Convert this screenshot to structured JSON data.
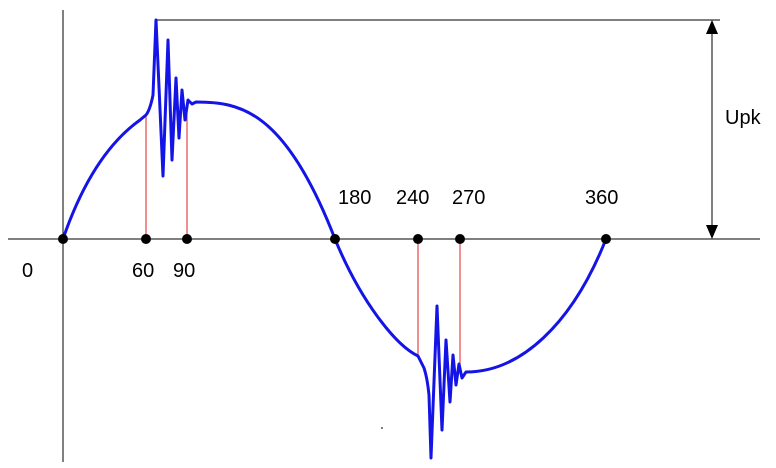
{
  "diagram": {
    "tick_labels": {
      "t0": "0",
      "t60": "60",
      "t90": "90",
      "t180": "180",
      "t240": "240",
      "t270": "270",
      "t360": "360"
    },
    "peak_label": "Upk",
    "colors": {
      "waveform": "#1414e6",
      "marker_lines": "#e02020",
      "axes": "#000000",
      "points": "#000000"
    }
  }
}
